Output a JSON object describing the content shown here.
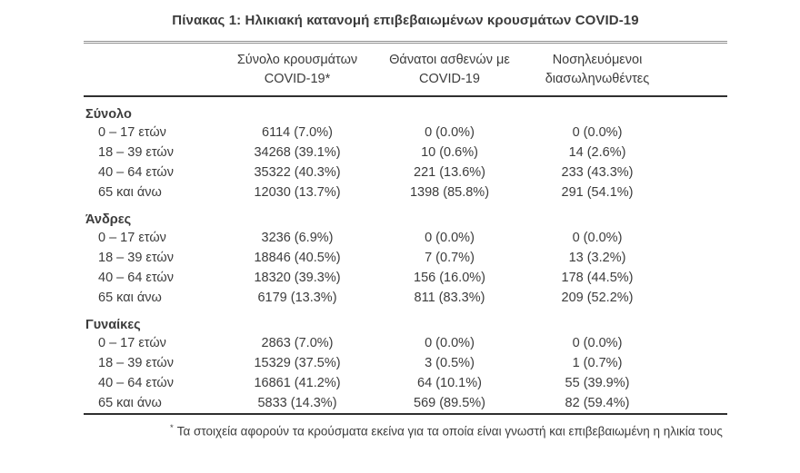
{
  "page": {
    "title": "Πίνακας 1: Ηλικιακή κατανομή επιβεβαιωμένων κρουσμάτων COVID-19"
  },
  "table": {
    "col_headers": [
      {
        "line1": "Σύνολο κρουσμάτων",
        "line2": "COVID-19*"
      },
      {
        "line1": "Θάνατοι ασθενών με",
        "line2": "COVID-19"
      },
      {
        "line1": "Νοσηλευόμενοι",
        "line2": "διασωληνωθέντες"
      }
    ],
    "sections": [
      {
        "label": "Σύνολο",
        "rows": [
          {
            "label": "0 – 17 ετών",
            "cases": "6114 (7.0%)",
            "deaths": "0 (0.0%)",
            "intubated": "0 (0.0%)"
          },
          {
            "label": "18 – 39 ετών",
            "cases": "34268 (39.1%)",
            "deaths": "10 (0.6%)",
            "intubated": "14 (2.6%)"
          },
          {
            "label": "40 – 64 ετών",
            "cases": "35322 (40.3%)",
            "deaths": "221 (13.6%)",
            "intubated": "233 (43.3%)"
          },
          {
            "label": "65 και άνω",
            "cases": "12030 (13.7%)",
            "deaths": "1398 (85.8%)",
            "intubated": "291 (54.1%)"
          }
        ]
      },
      {
        "label": "Άνδρες",
        "rows": [
          {
            "label": "0 – 17 ετών",
            "cases": "3236 (6.9%)",
            "deaths": "0 (0.0%)",
            "intubated": "0 (0.0%)"
          },
          {
            "label": "18 – 39 ετών",
            "cases": "18846 (40.5%)",
            "deaths": "7 (0.7%)",
            "intubated": "13 (3.2%)"
          },
          {
            "label": "40 – 64 ετών",
            "cases": "18320 (39.3%)",
            "deaths": "156 (16.0%)",
            "intubated": "178 (44.5%)"
          },
          {
            "label": "65 και άνω",
            "cases": "6179 (13.3%)",
            "deaths": "811 (83.3%)",
            "intubated": "209 (52.2%)"
          }
        ]
      },
      {
        "label": "Γυναίκες",
        "rows": [
          {
            "label": "0 – 17 ετών",
            "cases": "2863 (7.0%)",
            "deaths": "0 (0.0%)",
            "intubated": "0 (0.0%)"
          },
          {
            "label": "18 – 39 ετών",
            "cases": "15329 (37.5%)",
            "deaths": "3 (0.5%)",
            "intubated": "1 (0.7%)"
          },
          {
            "label": "40 – 64 ετών",
            "cases": "16861 (41.2%)",
            "deaths": "64 (10.1%)",
            "intubated": "55 (39.9%)"
          },
          {
            "label": "65 και άνω",
            "cases": "5833 (14.3%)",
            "deaths": "569 (89.5%)",
            "intubated": "82 (59.4%)"
          }
        ]
      }
    ],
    "footnote_marker": "*",
    "footnote": "Τα στοιχεία αφορούν τα κρούσματα εκείνα για τα οποία είναι γνωστή και επιβεβαιωμένη η ηλικία τους"
  },
  "colors": {
    "text": "#3c3c3c",
    "rule_heavy": "#303030",
    "rule_double": "#8f8f8f",
    "background": "#ffffff"
  }
}
